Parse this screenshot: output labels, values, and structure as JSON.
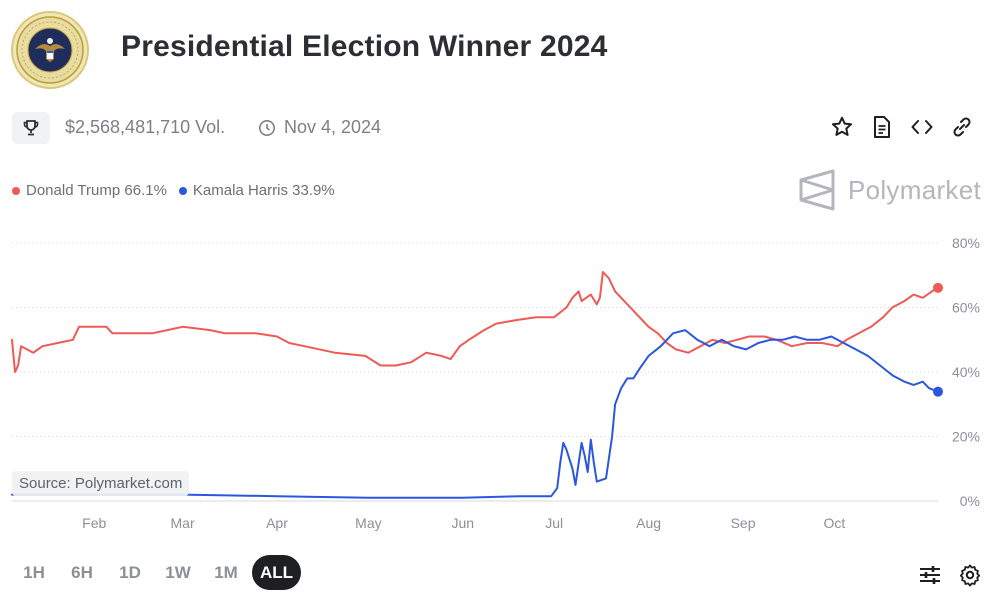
{
  "header": {
    "title": "Presidential Election Winner 2024",
    "logo_icon": "presidential-seal-icon"
  },
  "meta": {
    "trophy_icon": "trophy-icon",
    "volume": "$2,568,481,710 Vol.",
    "clock_icon": "clock-icon",
    "date": "Nov 4, 2024"
  },
  "actions": [
    "star-icon",
    "document-icon",
    "code-icon",
    "link-icon"
  ],
  "legend": [
    {
      "label": "Donald Trump 66.1%",
      "color": "#ef5a55"
    },
    {
      "label": "Kamala Harris 33.9%",
      "color": "#2b57e0"
    }
  ],
  "brand": {
    "name": "Polymarket",
    "icon": "polymarket-logo-icon"
  },
  "source_label": "Source: Polymarket.com",
  "ranges": [
    {
      "label": "1H",
      "active": false
    },
    {
      "label": "6H",
      "active": false
    },
    {
      "label": "1D",
      "active": false
    },
    {
      "label": "1W",
      "active": false
    },
    {
      "label": "1M",
      "active": false
    },
    {
      "label": "ALL",
      "active": true
    }
  ],
  "bottom_icons": [
    "sliders-icon",
    "settings-icon"
  ],
  "chart_data": {
    "type": "line",
    "x_unit": "date (2024)",
    "x_min": "2024-01-05",
    "x_max": "2024-11-04",
    "xticks": [
      {
        "date": "2024-02-01",
        "label": "Feb"
      },
      {
        "date": "2024-03-01",
        "label": "Mar"
      },
      {
        "date": "2024-04-01",
        "label": "Apr"
      },
      {
        "date": "2024-05-01",
        "label": "May"
      },
      {
        "date": "2024-06-01",
        "label": "Jun"
      },
      {
        "date": "2024-07-01",
        "label": "Jul"
      },
      {
        "date": "2024-08-01",
        "label": "Aug"
      },
      {
        "date": "2024-09-01",
        "label": "Sep"
      },
      {
        "date": "2024-10-01",
        "label": "Oct"
      }
    ],
    "yticks": [
      {
        "value": 0,
        "label": "0%"
      },
      {
        "value": 20,
        "label": "20%"
      },
      {
        "value": 40,
        "label": "40%"
      },
      {
        "value": 60,
        "label": "60%"
      },
      {
        "value": 80,
        "label": "80%"
      }
    ],
    "ylim": [
      0,
      80
    ],
    "grid": true,
    "series": [
      {
        "name": "Donald Trump",
        "color": "#ef5a55",
        "points": [
          [
            "2024-01-05",
            50
          ],
          [
            "2024-01-06",
            40
          ],
          [
            "2024-01-07",
            42
          ],
          [
            "2024-01-08",
            48
          ],
          [
            "2024-01-12",
            46
          ],
          [
            "2024-01-15",
            48
          ],
          [
            "2024-01-20",
            49
          ],
          [
            "2024-01-25",
            50
          ],
          [
            "2024-01-27",
            54
          ],
          [
            "2024-02-05",
            54
          ],
          [
            "2024-02-07",
            52
          ],
          [
            "2024-02-20",
            52
          ],
          [
            "2024-02-25",
            53
          ],
          [
            "2024-03-01",
            54
          ],
          [
            "2024-03-10",
            53
          ],
          [
            "2024-03-15",
            52
          ],
          [
            "2024-03-25",
            52
          ],
          [
            "2024-04-01",
            51
          ],
          [
            "2024-04-05",
            49
          ],
          [
            "2024-04-10",
            48
          ],
          [
            "2024-04-20",
            46
          ],
          [
            "2024-04-30",
            45
          ],
          [
            "2024-05-05",
            42
          ],
          [
            "2024-05-10",
            42
          ],
          [
            "2024-05-15",
            43
          ],
          [
            "2024-05-20",
            46
          ],
          [
            "2024-05-25",
            45
          ],
          [
            "2024-05-28",
            44
          ],
          [
            "2024-05-31",
            48
          ],
          [
            "2024-06-03",
            50
          ],
          [
            "2024-06-08",
            53
          ],
          [
            "2024-06-12",
            55
          ],
          [
            "2024-06-18",
            56
          ],
          [
            "2024-06-25",
            57
          ],
          [
            "2024-07-01",
            57
          ],
          [
            "2024-07-05",
            60
          ],
          [
            "2024-07-07",
            63
          ],
          [
            "2024-07-09",
            65
          ],
          [
            "2024-07-10",
            62
          ],
          [
            "2024-07-13",
            64
          ],
          [
            "2024-07-15",
            61
          ],
          [
            "2024-07-16",
            63
          ],
          [
            "2024-07-17",
            71
          ],
          [
            "2024-07-19",
            69
          ],
          [
            "2024-07-21",
            65
          ],
          [
            "2024-07-23",
            63
          ],
          [
            "2024-07-26",
            60
          ],
          [
            "2024-07-29",
            57
          ],
          [
            "2024-08-01",
            54
          ],
          [
            "2024-08-04",
            52
          ],
          [
            "2024-08-07",
            49
          ],
          [
            "2024-08-10",
            47
          ],
          [
            "2024-08-14",
            46
          ],
          [
            "2024-08-18",
            48
          ],
          [
            "2024-08-22",
            50
          ],
          [
            "2024-08-26",
            49
          ],
          [
            "2024-08-30",
            50
          ],
          [
            "2024-09-03",
            51
          ],
          [
            "2024-09-08",
            51
          ],
          [
            "2024-09-12",
            50
          ],
          [
            "2024-09-17",
            48
          ],
          [
            "2024-09-22",
            49
          ],
          [
            "2024-09-27",
            49
          ],
          [
            "2024-10-02",
            48
          ],
          [
            "2024-10-05",
            50
          ],
          [
            "2024-10-09",
            52
          ],
          [
            "2024-10-13",
            54
          ],
          [
            "2024-10-17",
            57
          ],
          [
            "2024-10-20",
            60
          ],
          [
            "2024-10-24",
            62
          ],
          [
            "2024-10-27",
            64
          ],
          [
            "2024-10-30",
            63
          ],
          [
            "2024-11-02",
            65
          ],
          [
            "2024-11-04",
            66.1
          ]
        ]
      },
      {
        "name": "Kamala Harris",
        "color": "#2b57e0",
        "points": [
          [
            "2024-01-05",
            2
          ],
          [
            "2024-02-01",
            2
          ],
          [
            "2024-03-01",
            2
          ],
          [
            "2024-04-01",
            1.5
          ],
          [
            "2024-05-01",
            1
          ],
          [
            "2024-06-01",
            1
          ],
          [
            "2024-06-20",
            1.5
          ],
          [
            "2024-06-30",
            1.5
          ],
          [
            "2024-07-02",
            4
          ],
          [
            "2024-07-03",
            12
          ],
          [
            "2024-07-04",
            18
          ],
          [
            "2024-07-05",
            16
          ],
          [
            "2024-07-07",
            10
          ],
          [
            "2024-07-08",
            5
          ],
          [
            "2024-07-10",
            18
          ],
          [
            "2024-07-11",
            14
          ],
          [
            "2024-07-12",
            9
          ],
          [
            "2024-07-13",
            19
          ],
          [
            "2024-07-14",
            12
          ],
          [
            "2024-07-15",
            6
          ],
          [
            "2024-07-18",
            7
          ],
          [
            "2024-07-20",
            20
          ],
          [
            "2024-07-21",
            30
          ],
          [
            "2024-07-23",
            35
          ],
          [
            "2024-07-25",
            38
          ],
          [
            "2024-07-27",
            38
          ],
          [
            "2024-07-29",
            41
          ],
          [
            "2024-08-01",
            45
          ],
          [
            "2024-08-05",
            48
          ],
          [
            "2024-08-09",
            52
          ],
          [
            "2024-08-13",
            53
          ],
          [
            "2024-08-17",
            50
          ],
          [
            "2024-08-21",
            48
          ],
          [
            "2024-08-25",
            50
          ],
          [
            "2024-08-29",
            48
          ],
          [
            "2024-09-02",
            47
          ],
          [
            "2024-09-06",
            49
          ],
          [
            "2024-09-10",
            50
          ],
          [
            "2024-09-14",
            50
          ],
          [
            "2024-09-18",
            51
          ],
          [
            "2024-09-22",
            50
          ],
          [
            "2024-09-26",
            50
          ],
          [
            "2024-09-30",
            51
          ],
          [
            "2024-10-04",
            49
          ],
          [
            "2024-10-08",
            47
          ],
          [
            "2024-10-12",
            45
          ],
          [
            "2024-10-16",
            42
          ],
          [
            "2024-10-20",
            39
          ],
          [
            "2024-10-24",
            37
          ],
          [
            "2024-10-27",
            36
          ],
          [
            "2024-10-30",
            37
          ],
          [
            "2024-11-01",
            35
          ],
          [
            "2024-11-04",
            33.9
          ]
        ]
      }
    ]
  }
}
